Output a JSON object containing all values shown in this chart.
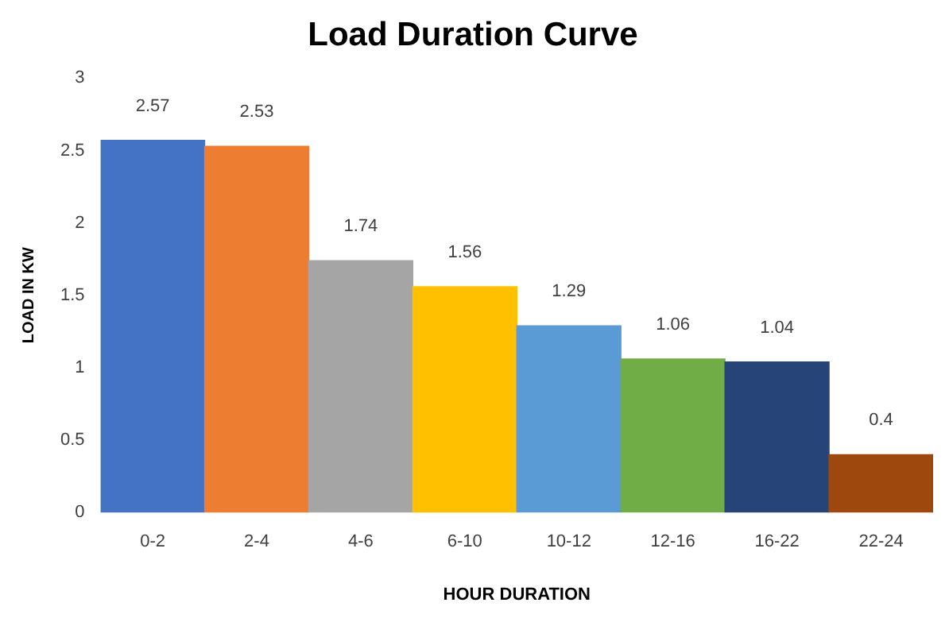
{
  "chart_data": {
    "type": "bar",
    "title": "Load Duration Curve",
    "xlabel": "HOUR DURATION",
    "ylabel": "LOAD IN KW",
    "categories": [
      "0-2",
      "2-4",
      "4-6",
      "6-10",
      "10-12",
      "12-16",
      "16-22",
      "22-24"
    ],
    "values": [
      2.57,
      2.53,
      1.74,
      1.56,
      1.29,
      1.06,
      1.04,
      0.4
    ],
    "colors": [
      "#4472c4",
      "#ed7d31",
      "#a5a5a5",
      "#ffc000",
      "#5b9bd5",
      "#70ad47",
      "#264478",
      "#9e480e"
    ],
    "ylim": [
      0,
      3
    ],
    "yticks": [
      0,
      0.5,
      1,
      1.5,
      2,
      2.5,
      3
    ],
    "grid": false,
    "legend": false,
    "data_labels": true
  }
}
